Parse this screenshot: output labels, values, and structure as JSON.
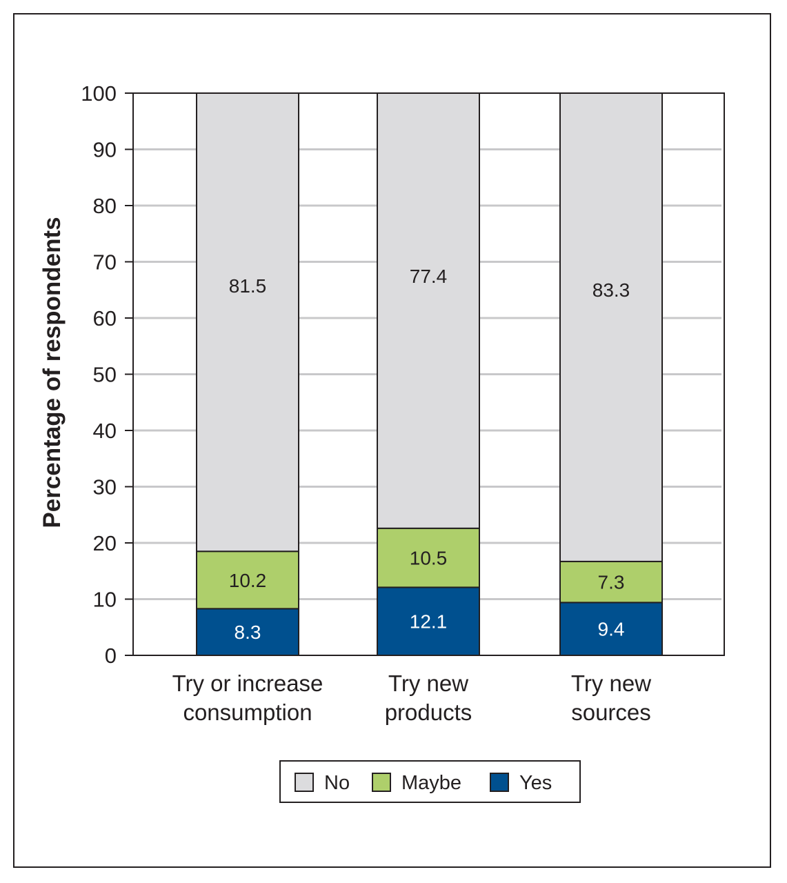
{
  "chart_data": {
    "type": "bar",
    "stacked": true,
    "categories": [
      [
        "Try or increase",
        "consumption"
      ],
      [
        "Try new",
        "products"
      ],
      [
        "Try new",
        "sources"
      ]
    ],
    "series": [
      {
        "name": "Yes",
        "color": "#00508f",
        "label_color": "#ffffff",
        "values": [
          8.3,
          12.1,
          9.4
        ]
      },
      {
        "name": "Maybe",
        "color": "#aecf6b",
        "label_color": "#231f20",
        "values": [
          10.2,
          10.5,
          7.3
        ]
      },
      {
        "name": "No",
        "color": "#dcdcde",
        "label_color": "#231f20",
        "values": [
          81.5,
          77.4,
          83.3
        ]
      }
    ],
    "legend_order": [
      "No",
      "Maybe",
      "Yes"
    ],
    "legend_position": "bottom-center",
    "ylabel": "Percentage of respondents",
    "xlabel": "",
    "ylim": [
      0,
      100
    ],
    "yticks": [
      0,
      10,
      20,
      30,
      40,
      50,
      60,
      70,
      80,
      90,
      100
    ],
    "grid": true
  }
}
